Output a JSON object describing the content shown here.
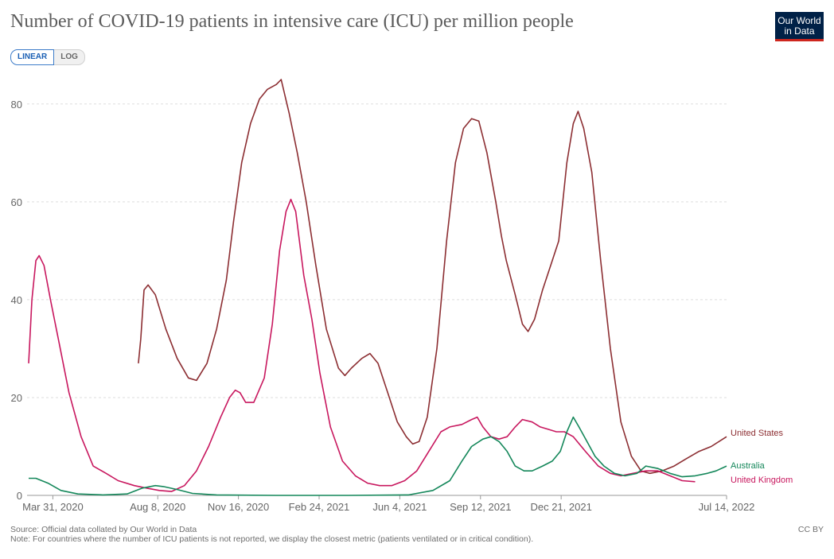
{
  "header": {
    "title": "Number of COVID-19 patients in intensive care (ICU) per million people",
    "logo_line1": "Our World",
    "logo_line2": "in Data"
  },
  "scale_toggle": {
    "linear_label": "LINEAR",
    "log_label": "LOG",
    "selected": "linear"
  },
  "footer": {
    "source": "Source: Official data collated by Our World in Data",
    "note": "Note: For countries where the number of ICU patients is not reported, we display the closest metric (patients ventilated or in critical condition).",
    "license": "CC BY"
  },
  "colors": {
    "United States": "#8c2e32",
    "United Kingdom": "#c8175e",
    "Australia": "#14875a",
    "grid": "#dddddd",
    "axis_text": "#666666"
  },
  "chart_data": {
    "type": "line",
    "title": "Number of COVID-19 patients in intensive care (ICU) per million people",
    "xlabel": "",
    "ylabel": "",
    "x_range": [
      "2020-03-01",
      "2022-07-14"
    ],
    "ylim": [
      0,
      85
    ],
    "y_ticks": [
      0,
      20,
      40,
      60,
      80
    ],
    "x_ticks": [
      {
        "date": "2020-03-31",
        "label": "Mar 31, 2020"
      },
      {
        "date": "2020-08-08",
        "label": "Aug 8, 2020"
      },
      {
        "date": "2020-11-16",
        "label": "Nov 16, 2020"
      },
      {
        "date": "2021-02-24",
        "label": "Feb 24, 2021"
      },
      {
        "date": "2021-06-04",
        "label": "Jun 4, 2021"
      },
      {
        "date": "2021-09-12",
        "label": "Sep 12, 2021"
      },
      {
        "date": "2021-12-21",
        "label": "Dec 21, 2021"
      },
      {
        "date": "2022-07-14",
        "label": "Jul 14, 2022"
      }
    ],
    "grid": true,
    "legend": "inline labels at line ends (right)",
    "series": [
      {
        "name": "United States",
        "points": [
          [
            "2020-07-15",
            27
          ],
          [
            "2020-07-18",
            32
          ],
          [
            "2020-07-22",
            42
          ],
          [
            "2020-07-27",
            43
          ],
          [
            "2020-08-05",
            41
          ],
          [
            "2020-08-18",
            34
          ],
          [
            "2020-09-01",
            28
          ],
          [
            "2020-09-15",
            24
          ],
          [
            "2020-09-25",
            23.5
          ],
          [
            "2020-10-08",
            27
          ],
          [
            "2020-10-20",
            34
          ],
          [
            "2020-11-01",
            44
          ],
          [
            "2020-11-10",
            56
          ],
          [
            "2020-11-20",
            68
          ],
          [
            "2020-12-01",
            76
          ],
          [
            "2020-12-12",
            81
          ],
          [
            "2020-12-22",
            83
          ],
          [
            "2021-01-02",
            84
          ],
          [
            "2021-01-08",
            85
          ],
          [
            "2021-01-18",
            78
          ],
          [
            "2021-01-28",
            70
          ],
          [
            "2021-02-08",
            60
          ],
          [
            "2021-02-20",
            47
          ],
          [
            "2021-03-05",
            34
          ],
          [
            "2021-03-20",
            26
          ],
          [
            "2021-03-28",
            24.5
          ],
          [
            "2021-04-05",
            26
          ],
          [
            "2021-04-18",
            28
          ],
          [
            "2021-04-28",
            29
          ],
          [
            "2021-05-08",
            27
          ],
          [
            "2021-05-20",
            21
          ],
          [
            "2021-06-01",
            15
          ],
          [
            "2021-06-12",
            12
          ],
          [
            "2021-06-20",
            10.5
          ],
          [
            "2021-06-28",
            11
          ],
          [
            "2021-07-08",
            16
          ],
          [
            "2021-07-20",
            30
          ],
          [
            "2021-08-01",
            52
          ],
          [
            "2021-08-12",
            68
          ],
          [
            "2021-08-22",
            75
          ],
          [
            "2021-09-01",
            77
          ],
          [
            "2021-09-10",
            76.5
          ],
          [
            "2021-09-20",
            70
          ],
          [
            "2021-10-01",
            60
          ],
          [
            "2021-10-08",
            53
          ],
          [
            "2021-10-14",
            48
          ],
          [
            "2021-10-25",
            41
          ],
          [
            "2021-11-03",
            35
          ],
          [
            "2021-11-10",
            33.5
          ],
          [
            "2021-11-18",
            36
          ],
          [
            "2021-11-28",
            42
          ],
          [
            "2021-12-08",
            47
          ],
          [
            "2021-12-18",
            52
          ],
          [
            "2021-12-28",
            68
          ],
          [
            "2022-01-05",
            76
          ],
          [
            "2022-01-11",
            78.5
          ],
          [
            "2022-01-18",
            75
          ],
          [
            "2022-01-28",
            66
          ],
          [
            "2022-02-08",
            48
          ],
          [
            "2022-02-20",
            30
          ],
          [
            "2022-03-05",
            15
          ],
          [
            "2022-03-18",
            8
          ],
          [
            "2022-03-30",
            5
          ],
          [
            "2022-04-10",
            4.5
          ],
          [
            "2022-04-25",
            5
          ],
          [
            "2022-05-10",
            6
          ],
          [
            "2022-05-25",
            7.5
          ],
          [
            "2022-06-10",
            9
          ],
          [
            "2022-06-25",
            10
          ],
          [
            "2022-07-14",
            12
          ]
        ]
      },
      {
        "name": "United Kingdom",
        "points": [
          [
            "2020-03-01",
            27
          ],
          [
            "2020-03-05",
            40
          ],
          [
            "2020-03-10",
            48
          ],
          [
            "2020-03-14",
            49
          ],
          [
            "2020-03-20",
            47
          ],
          [
            "2020-03-28",
            40
          ],
          [
            "2020-04-08",
            31
          ],
          [
            "2020-04-20",
            21
          ],
          [
            "2020-05-05",
            12
          ],
          [
            "2020-05-20",
            6
          ],
          [
            "2020-06-05",
            4.5
          ],
          [
            "2020-06-20",
            3
          ],
          [
            "2020-07-10",
            2
          ],
          [
            "2020-07-25",
            1.5
          ],
          [
            "2020-08-10",
            1
          ],
          [
            "2020-08-25",
            0.8
          ],
          [
            "2020-09-10",
            2
          ],
          [
            "2020-09-25",
            5
          ],
          [
            "2020-10-10",
            10
          ],
          [
            "2020-10-25",
            16
          ],
          [
            "2020-11-05",
            20
          ],
          [
            "2020-11-12",
            21.5
          ],
          [
            "2020-11-18",
            21
          ],
          [
            "2020-11-25",
            19
          ],
          [
            "2020-12-05",
            19
          ],
          [
            "2020-12-18",
            24
          ],
          [
            "2020-12-28",
            35
          ],
          [
            "2021-01-06",
            50
          ],
          [
            "2021-01-14",
            58
          ],
          [
            "2021-01-20",
            60.5
          ],
          [
            "2021-01-26",
            58
          ],
          [
            "2021-02-05",
            45
          ],
          [
            "2021-02-15",
            36
          ],
          [
            "2021-02-25",
            25
          ],
          [
            "2021-03-10",
            14
          ],
          [
            "2021-03-25",
            7
          ],
          [
            "2021-04-10",
            4
          ],
          [
            "2021-04-25",
            2.5
          ],
          [
            "2021-05-10",
            2
          ],
          [
            "2021-05-25",
            2
          ],
          [
            "2021-06-10",
            3
          ],
          [
            "2021-06-25",
            5
          ],
          [
            "2021-07-10",
            9
          ],
          [
            "2021-07-25",
            13
          ],
          [
            "2021-08-05",
            14
          ],
          [
            "2021-08-20",
            14.5
          ],
          [
            "2021-09-01",
            15.5
          ],
          [
            "2021-09-08",
            16
          ],
          [
            "2021-09-15",
            14
          ],
          [
            "2021-09-25",
            12
          ],
          [
            "2021-10-05",
            11.5
          ],
          [
            "2021-10-15",
            12
          ],
          [
            "2021-10-25",
            14
          ],
          [
            "2021-11-03",
            15.5
          ],
          [
            "2021-11-15",
            15
          ],
          [
            "2021-11-25",
            14
          ],
          [
            "2021-12-05",
            13.5
          ],
          [
            "2021-12-15",
            13
          ],
          [
            "2021-12-25",
            13
          ],
          [
            "2022-01-05",
            12
          ],
          [
            "2022-01-20",
            9
          ],
          [
            "2022-02-05",
            6
          ],
          [
            "2022-02-20",
            4.5
          ],
          [
            "2022-03-05",
            4
          ],
          [
            "2022-03-20",
            4.5
          ],
          [
            "2022-04-05",
            5
          ],
          [
            "2022-04-20",
            5
          ],
          [
            "2022-05-05",
            4
          ],
          [
            "2022-05-20",
            3
          ],
          [
            "2022-06-05",
            2.8
          ]
        ]
      },
      {
        "name": "Australia",
        "points": [
          [
            "2020-03-01",
            3.5
          ],
          [
            "2020-03-10",
            3.5
          ],
          [
            "2020-03-25",
            2.5
          ],
          [
            "2020-04-10",
            1
          ],
          [
            "2020-05-01",
            0.3
          ],
          [
            "2020-06-01",
            0.1
          ],
          [
            "2020-07-01",
            0.3
          ],
          [
            "2020-07-20",
            1.5
          ],
          [
            "2020-08-05",
            2
          ],
          [
            "2020-08-15",
            1.8
          ],
          [
            "2020-09-01",
            1.2
          ],
          [
            "2020-09-20",
            0.4
          ],
          [
            "2020-10-20",
            0.1
          ],
          [
            "2021-01-01",
            0
          ],
          [
            "2021-04-01",
            0
          ],
          [
            "2021-06-15",
            0.1
          ],
          [
            "2021-07-15",
            1
          ],
          [
            "2021-08-05",
            3
          ],
          [
            "2021-08-20",
            7
          ],
          [
            "2021-09-01",
            10
          ],
          [
            "2021-09-15",
            11.5
          ],
          [
            "2021-09-25",
            12
          ],
          [
            "2021-10-05",
            11
          ],
          [
            "2021-10-15",
            9
          ],
          [
            "2021-10-25",
            6
          ],
          [
            "2021-11-05",
            5
          ],
          [
            "2021-11-15",
            5
          ],
          [
            "2021-11-28",
            6
          ],
          [
            "2021-12-10",
            7
          ],
          [
            "2021-12-20",
            9
          ],
          [
            "2021-12-28",
            13
          ],
          [
            "2022-01-05",
            16
          ],
          [
            "2022-01-12",
            14
          ],
          [
            "2022-01-22",
            11
          ],
          [
            "2022-02-01",
            8
          ],
          [
            "2022-02-12",
            6
          ],
          [
            "2022-02-25",
            4.5
          ],
          [
            "2022-03-10",
            4
          ],
          [
            "2022-03-25",
            4.5
          ],
          [
            "2022-04-05",
            6
          ],
          [
            "2022-04-20",
            5.5
          ],
          [
            "2022-05-05",
            4.5
          ],
          [
            "2022-05-20",
            3.8
          ],
          [
            "2022-06-05",
            4
          ],
          [
            "2022-06-20",
            4.5
          ],
          [
            "2022-07-01",
            5
          ],
          [
            "2022-07-14",
            6
          ]
        ]
      }
    ]
  }
}
